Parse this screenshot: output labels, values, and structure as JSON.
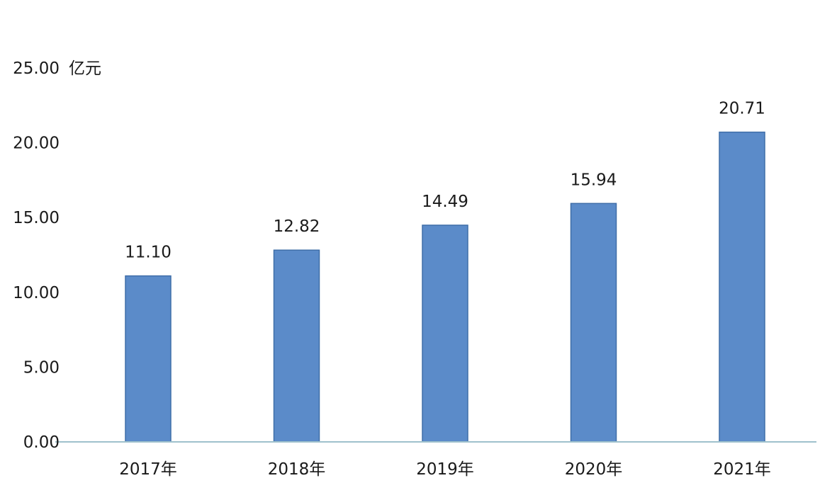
{
  "chart_data": {
    "type": "bar",
    "title": "",
    "xlabel": "",
    "ylabel": "亿元",
    "categories": [
      "2017年",
      "2018年",
      "2019年",
      "2020年",
      "2021年"
    ],
    "values": [
      11.1,
      12.82,
      14.49,
      15.94,
      20.71
    ],
    "value_labels": [
      "11.10",
      "12.82",
      "14.49",
      "15.94",
      "20.71"
    ],
    "yticks": [
      "0.00",
      "5.00",
      "10.00",
      "15.00",
      "20.00",
      "25.00"
    ],
    "ylim": [
      0,
      25
    ],
    "grid": false,
    "legend": "none",
    "bar_color": "#5b8bc9",
    "bar_edge_color": "#3f6ea8",
    "axis_color": "#9fc1cc"
  }
}
